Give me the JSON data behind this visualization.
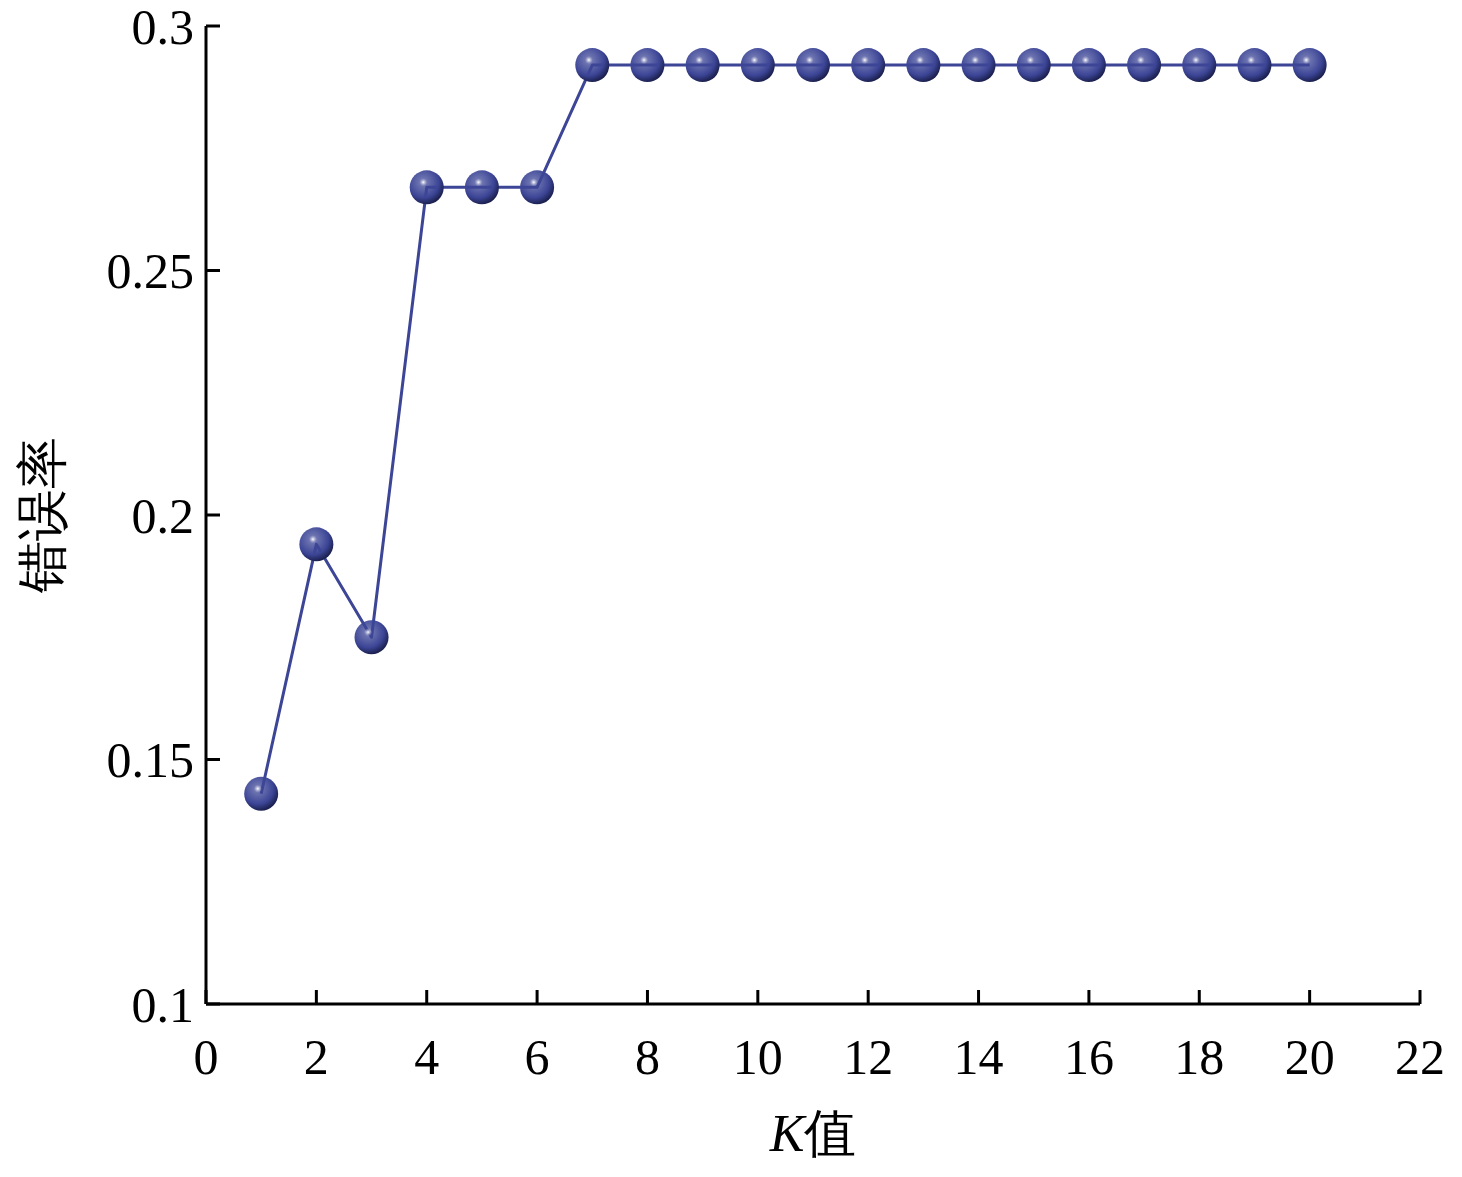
{
  "chart_data": {
    "type": "line",
    "xlabel": "K值",
    "ylabel": "错误率",
    "x": [
      1,
      2,
      3,
      4,
      5,
      6,
      7,
      8,
      9,
      10,
      11,
      12,
      13,
      14,
      15,
      16,
      17,
      18,
      19,
      20
    ],
    "series": [
      {
        "color": "#3c4596",
        "values": [
          0.143,
          0.194,
          0.175,
          0.267,
          0.267,
          0.267,
          0.292,
          0.292,
          0.292,
          0.292,
          0.292,
          0.292,
          0.292,
          0.292,
          0.292,
          0.292,
          0.292,
          0.292,
          0.292,
          0.292
        ]
      }
    ],
    "xlim": [
      0,
      22
    ],
    "xticks": [
      0,
      2,
      4,
      6,
      8,
      10,
      12,
      14,
      16,
      18,
      20,
      22
    ],
    "ylim": [
      0.1,
      0.3
    ],
    "yticks": [
      0.1,
      0.15,
      0.2,
      0.25,
      0.3
    ],
    "grid": false,
    "marker": "circle",
    "line_style": "solid"
  }
}
